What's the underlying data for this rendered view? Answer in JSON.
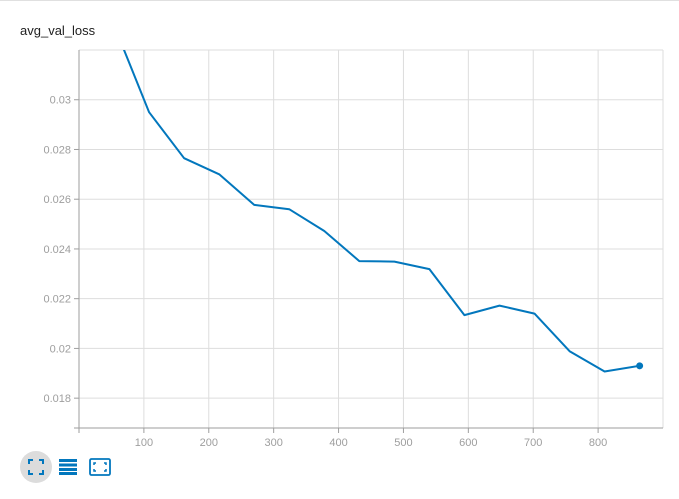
{
  "chart_data": {
    "type": "line",
    "title": "avg_val_loss",
    "xlabel": "",
    "ylabel": "",
    "x_ticks": [
      100,
      200,
      300,
      400,
      500,
      600,
      700,
      800
    ],
    "y_ticks": [
      0.018,
      0.02,
      0.022,
      0.024,
      0.026,
      0.028,
      0.03
    ],
    "y_tick_labels": [
      "0.018",
      "0.02",
      "0.022",
      "0.024",
      "0.026",
      "0.028",
      "0.03"
    ],
    "xlim": [
      0,
      900
    ],
    "ylim": [
      0.0168,
      0.032
    ],
    "grid": true,
    "series": [
      {
        "color": "#0277bd",
        "x": [
          54,
          108,
          162,
          216,
          270,
          324,
          378,
          432,
          486,
          540,
          594,
          648,
          702,
          756,
          810,
          864
        ],
        "y": [
          0.033,
          0.0295,
          0.02765,
          0.027,
          0.02577,
          0.0256,
          0.02472,
          0.02351,
          0.02349,
          0.02319,
          0.02134,
          0.02172,
          0.0214,
          0.01989,
          0.01907,
          0.0193
        ]
      }
    ]
  },
  "toolbar": {
    "buttons": [
      {
        "icon": "fullscreen-icon",
        "active": true
      },
      {
        "icon": "data-table-icon",
        "active": false
      },
      {
        "icon": "fit-domain-icon",
        "active": false
      }
    ],
    "accent": "#0277bd"
  }
}
